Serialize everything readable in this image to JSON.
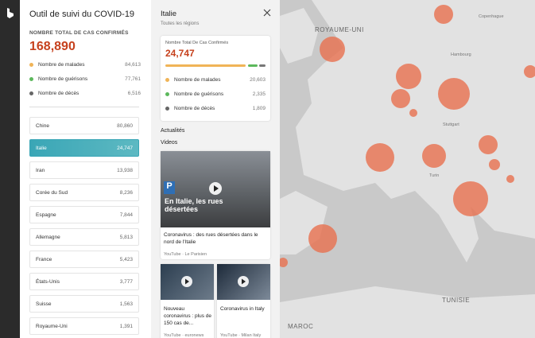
{
  "app": {
    "title": "Outil de suivi du COVID-19"
  },
  "global": {
    "caption": "NOMBRE TOTAL DE CAS CONFIRMÉS",
    "total": "168,890",
    "stats": [
      {
        "label": "Nombre de malades",
        "value": "84,613"
      },
      {
        "label": "Nombre de guérisons",
        "value": "77,761"
      },
      {
        "label": "Nombre de décès",
        "value": "6,516"
      }
    ]
  },
  "countries": [
    {
      "name": "Chine",
      "value": "80,860"
    },
    {
      "name": "Italie",
      "value": "24,747"
    },
    {
      "name": "Iran",
      "value": "13,938"
    },
    {
      "name": "Corée du Sud",
      "value": "8,236"
    },
    {
      "name": "Espagne",
      "value": "7,844"
    },
    {
      "name": "Allemagne",
      "value": "5,813"
    },
    {
      "name": "France",
      "value": "5,423"
    },
    {
      "name": "États-Unis",
      "value": "3,777"
    },
    {
      "name": "Suisse",
      "value": "1,563"
    },
    {
      "name": "Royaume-Uni",
      "value": "1,391"
    }
  ],
  "detail": {
    "title": "Italie",
    "subtitle": "Toutes les régions",
    "caption": "Nombre Total De Cas Confirmés",
    "total": "24,747",
    "stats": [
      {
        "label": "Nombre de malades",
        "value": "20,603"
      },
      {
        "label": "Nombre de guérisons",
        "value": "2,335"
      },
      {
        "label": "Nombre de décès",
        "value": "1,809"
      }
    ],
    "news_heading": "Actualités",
    "videos_heading": "Videos",
    "videos": [
      {
        "thumb_text": "En Italie, les rues désertées",
        "title": "Coronavirus : des rues désertées dans le nord de l'Italie",
        "source": "YouTube · Le Parisien"
      },
      {
        "title": "Nouveau coronavirus : plus de 150 cas de...",
        "source": "YouTube · euronews"
      },
      {
        "title": "Coronavirus in Italy",
        "source": "YouTube · Milan Italy"
      }
    ]
  },
  "map": {
    "labels": [
      "ROYAUME-UNI",
      "MAROC",
      "TUNISIE"
    ],
    "cities": [
      "Hambourg",
      "Copenhague",
      "Stuttgart",
      "Turin"
    ]
  }
}
